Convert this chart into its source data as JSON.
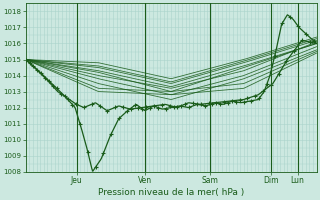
{
  "xlabel": "Pression niveau de la mer( hPa )",
  "ylim": [
    1008,
    1018.5
  ],
  "yticks": [
    1008,
    1009,
    1010,
    1011,
    1012,
    1013,
    1014,
    1015,
    1016,
    1017,
    1018
  ],
  "background_color": "#cce8e0",
  "grid_major_color": "#aad4cc",
  "grid_minor_color": "#bcddd6",
  "line_color": "#1a5c1a",
  "day_labels": [
    "Jeu",
    "Ven",
    "Sam",
    "Dim",
    "Lun"
  ],
  "day_positions": [
    0.175,
    0.41,
    0.635,
    0.845,
    0.935
  ],
  "figsize": [
    3.2,
    2.0
  ],
  "dpi": 100
}
